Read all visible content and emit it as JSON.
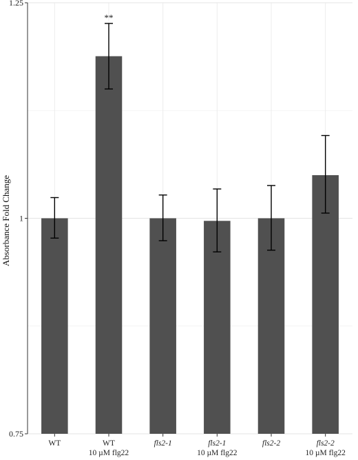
{
  "chart_data": {
    "type": "bar",
    "title": "",
    "xlabel": "",
    "ylabel": "Absorbance Fold Change",
    "ylim": [
      0.75,
      1.25
    ],
    "yticks": [
      0.75,
      1,
      1.25
    ],
    "ytick_labels": [
      "0.75",
      "1",
      "1.25"
    ],
    "grid": true,
    "bar_color": "#505050",
    "categories": [
      {
        "line1": "WT",
        "line1_italic": false,
        "line2": ""
      },
      {
        "line1": "WT",
        "line1_italic": false,
        "line2": "10 µM flg22"
      },
      {
        "line1": "fls2-1",
        "line1_italic": true,
        "line2": ""
      },
      {
        "line1": "fls2-1",
        "line1_italic": true,
        "line2": "10 µM flg22"
      },
      {
        "line1": "fls2-2",
        "line1_italic": true,
        "line2": ""
      },
      {
        "line1": "fls2-2",
        "line1_italic": true,
        "line2": "10 µM flg22"
      }
    ],
    "values": [
      1.0,
      1.188,
      1.0,
      0.997,
      1.0,
      1.05
    ],
    "error_upper": [
      1.024,
      1.226,
      1.027,
      1.034,
      1.038,
      1.096
    ],
    "error_lower": [
      0.977,
      1.15,
      0.974,
      0.961,
      0.963,
      1.006
    ],
    "annotations": [
      "",
      "**",
      "",
      "",
      "",
      ""
    ]
  }
}
